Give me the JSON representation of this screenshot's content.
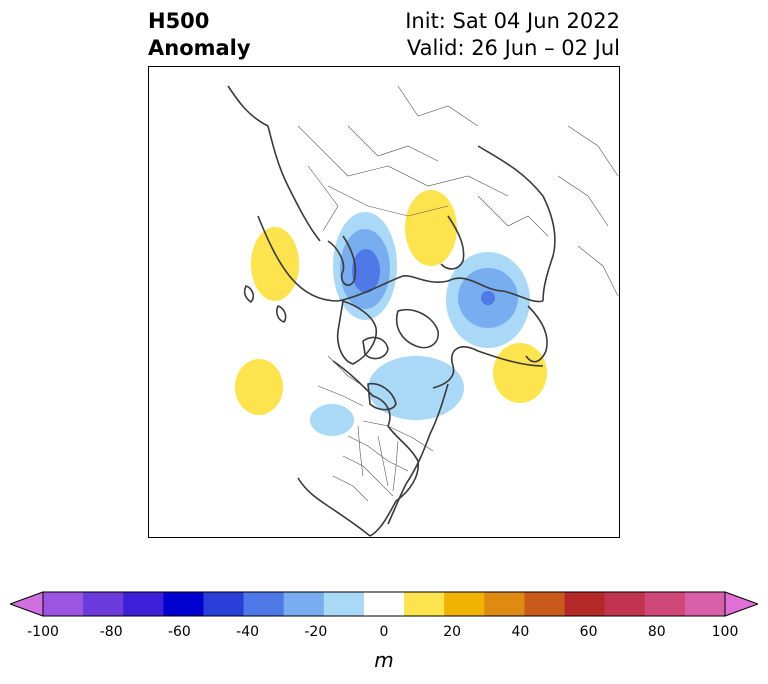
{
  "title": {
    "variable": "H500",
    "subtitle": "Anomaly",
    "init": "Init: Sat 04 Jun 2022",
    "valid": "Valid: 26 Jun – 02 Jul"
  },
  "map": {
    "projection": "north-polar-stereographic",
    "anomaly_features": [
      {
        "sign": "positive",
        "peak_m": 15,
        "region": "Western Siberia / Kara Sea"
      },
      {
        "sign": "positive",
        "peak_m": 15,
        "region": "North Atlantic / Iceland"
      },
      {
        "sign": "positive",
        "peak_m": 15,
        "region": "North Pacific (east)"
      },
      {
        "sign": "positive",
        "peak_m": 15,
        "region": "North Pacific / Bering Sea"
      },
      {
        "sign": "negative",
        "peak_m": -45,
        "region": "Northern Europe / Scandinavia"
      },
      {
        "sign": "negative",
        "peak_m": -45,
        "region": "Eastern Siberia / Laptev Sea"
      },
      {
        "sign": "negative",
        "peak_m": -25,
        "region": "Hudson Bay / Greenland"
      },
      {
        "sign": "negative",
        "peak_m": -15,
        "region": "Western Canada"
      }
    ]
  },
  "colorbar": {
    "unit": "m",
    "extend": "both",
    "levels": [
      -100,
      -90,
      -80,
      -70,
      -60,
      -50,
      -40,
      -30,
      -20,
      -10,
      10,
      20,
      30,
      40,
      50,
      60,
      70,
      80,
      90,
      100
    ],
    "colors": [
      "#d070e0",
      "#9b55e0",
      "#6b3cdb",
      "#3c1fd6",
      "#0000d0",
      "#2a3fd8",
      "#4f79e6",
      "#78adf0",
      "#aad8f7",
      "#ffffff",
      "#fde34e",
      "#f0b400",
      "#df8a10",
      "#c95a1c",
      "#b42828",
      "#c2344e",
      "#d04878",
      "#d860a8",
      "#e070d8"
    ],
    "ticks": [
      "-100",
      "-80",
      "-60",
      "-40",
      "-20",
      "0",
      "20",
      "40",
      "60",
      "80",
      "100"
    ],
    "tick_values": [
      -100,
      -80,
      -60,
      -40,
      -20,
      0,
      20,
      40,
      60,
      80,
      100
    ]
  }
}
